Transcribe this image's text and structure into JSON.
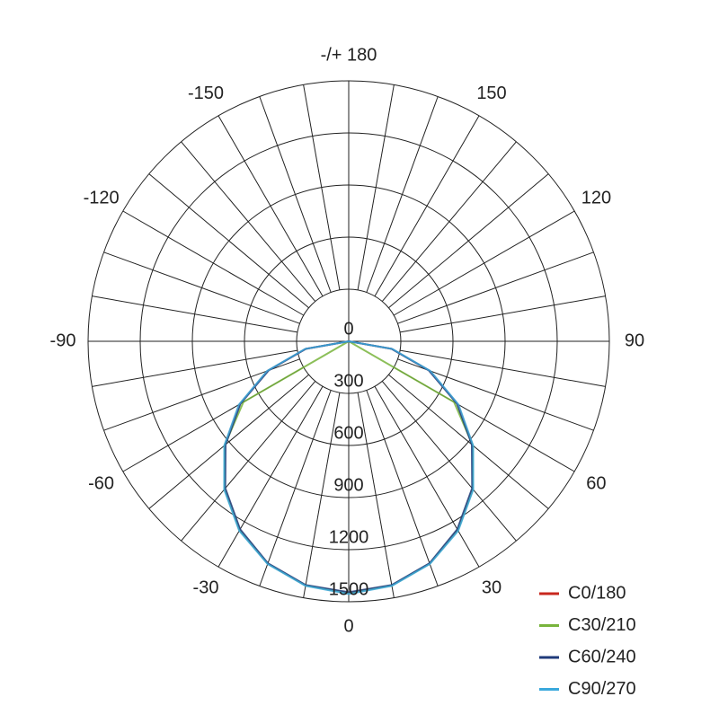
{
  "chart_data": {
    "type": "polar",
    "xlim": [
      -180,
      180
    ],
    "xticks": [
      {
        "value": 180,
        "label": "-/+ 180"
      },
      150,
      120,
      90,
      60,
      30,
      0,
      -30,
      -60,
      -90,
      -120,
      -150
    ],
    "rlim": [
      0,
      1500
    ],
    "rticks": [
      0,
      300,
      600,
      900,
      1200,
      1500
    ],
    "grid": true,
    "legend": "lower right",
    "x": [
      -90,
      -80,
      -70,
      -60,
      -50,
      -40,
      -30,
      -20,
      -10,
      0,
      10,
      20,
      30,
      40,
      50,
      60,
      70,
      80,
      90
    ],
    "series": [
      {
        "name": "C0/180",
        "color": "#c8281e",
        "values": [
          0,
          252,
          496,
          725,
          932,
          1111,
          1256,
          1363,
          1428,
          1450,
          1428,
          1363,
          1256,
          1111,
          932,
          725,
          496,
          252,
          0
        ]
      },
      {
        "name": "C30/210",
        "color": "#78b43c",
        "values": [
          0,
          0,
          0,
          700,
          932,
          1111,
          1256,
          1363,
          1428,
          1450,
          1428,
          1363,
          1256,
          1111,
          932,
          700,
          0,
          0,
          0
        ]
      },
      {
        "name": "C60/240",
        "color": "#1f3a7a",
        "values": [
          0,
          250,
          490,
          720,
          925,
          1105,
          1250,
          1360,
          1425,
          1445,
          1425,
          1360,
          1250,
          1105,
          925,
          720,
          490,
          250,
          0
        ]
      },
      {
        "name": "C90/270",
        "color": "#3aa8dc",
        "values": [
          0,
          255,
          500,
          730,
          935,
          1115,
          1260,
          1365,
          1430,
          1455,
          1430,
          1365,
          1260,
          1115,
          935,
          730,
          500,
          255,
          0
        ]
      }
    ]
  }
}
